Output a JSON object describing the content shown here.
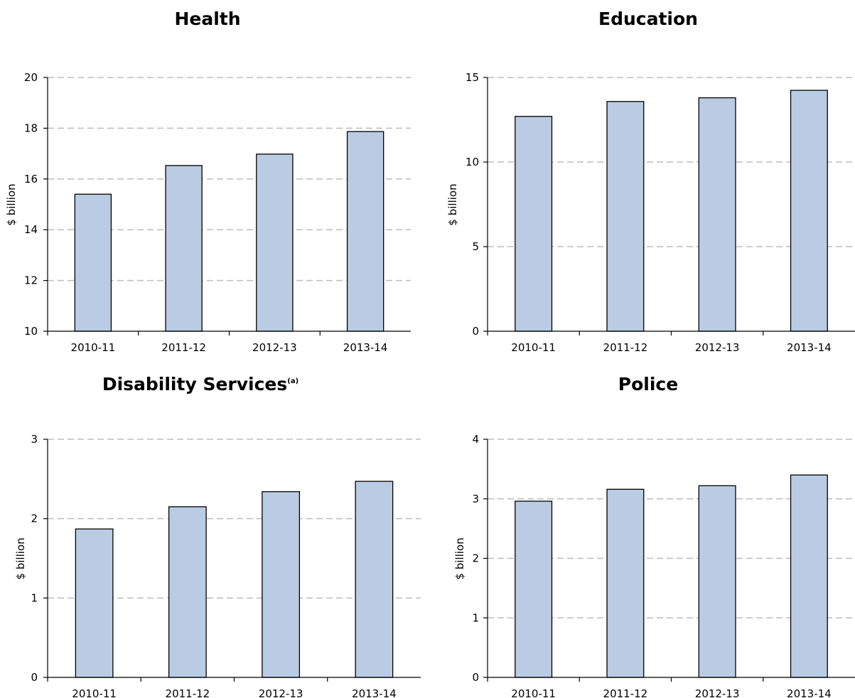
{
  "bar_color": "#b9cce4",
  "chart_data": [
    {
      "type": "bar",
      "title": "Health",
      "title_superscript": "",
      "ylabel": "$ billion",
      "xlabel": "",
      "categories": [
        "2010-11",
        "2011-12",
        "2012-13",
        "2013-14"
      ],
      "values": [
        15.4,
        16.53,
        16.98,
        17.87
      ],
      "ylim": [
        10,
        20
      ],
      "yticks": [
        10,
        12,
        14,
        16,
        18,
        20
      ],
      "grid": true
    },
    {
      "type": "bar",
      "title": "Education",
      "title_superscript": "",
      "ylabel": "$ billion",
      "xlabel": "",
      "categories": [
        "2010-11",
        "2011-12",
        "2012-13",
        "2013-14"
      ],
      "values": [
        12.7,
        13.58,
        13.8,
        14.24
      ],
      "ylim": [
        0,
        15
      ],
      "yticks": [
        0,
        5,
        10,
        15
      ],
      "grid": true
    },
    {
      "type": "bar",
      "title": "Disability Services",
      "title_superscript": "(a)",
      "ylabel": "$ billion",
      "xlabel": "",
      "categories": [
        "2010-11",
        "2011-12",
        "2012-13",
        "2013-14"
      ],
      "values": [
        1.87,
        2.15,
        2.34,
        2.47
      ],
      "ylim": [
        0,
        3
      ],
      "yticks": [
        0,
        1,
        2,
        3
      ],
      "grid": true
    },
    {
      "type": "bar",
      "title": "Police",
      "title_superscript": "",
      "ylabel": "$ billion",
      "xlabel": "",
      "categories": [
        "2010-11",
        "2011-12",
        "2012-13",
        "2013-14"
      ],
      "values": [
        2.96,
        3.16,
        3.22,
        3.4
      ],
      "ylim": [
        0,
        4
      ],
      "yticks": [
        0,
        1,
        2,
        3,
        4
      ],
      "grid": true
    }
  ]
}
